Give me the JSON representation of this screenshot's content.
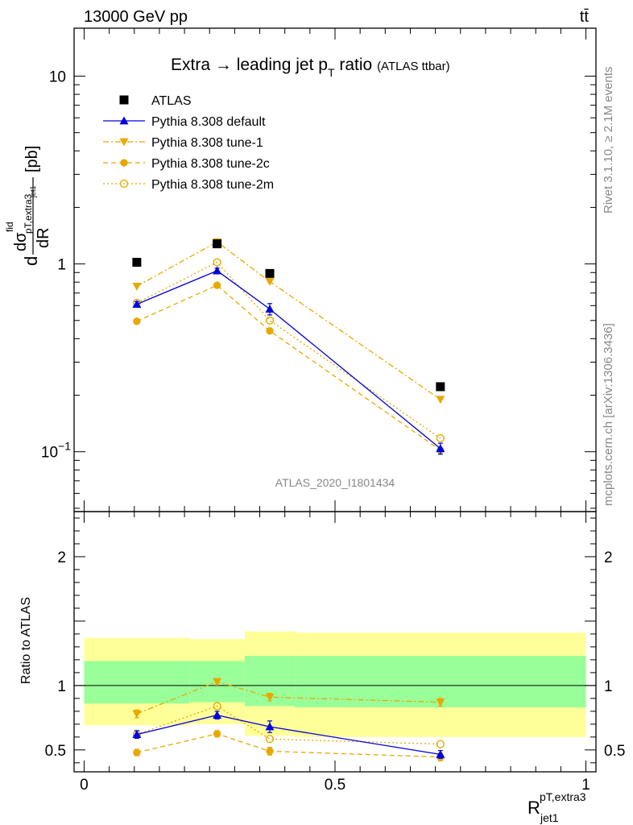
{
  "header": {
    "energy": "13000 GeV pp",
    "process": "tt̄"
  },
  "side": {
    "rivet": "Rivet 3.1.10, ≥ 2.1M events",
    "mcplots": "mcplots.cern.ch [arXiv:1306.3436]"
  },
  "colors": {
    "atlas": "#000000",
    "default": "#0000dd",
    "tunes": "#e8a800",
    "band_inner": "#99ff99",
    "band_outer": "#ffff99"
  },
  "chart_data": [
    {
      "type": "scatter",
      "panel": "main",
      "title_main": "Extra",
      "title_rest": "leading jet p",
      "title_sub": "T",
      "title_end": "ratio",
      "title_small": "(ATLAS ttbar)",
      "analysis": "ATLAS_2020_I1801434",
      "ylabel_num_d": "d",
      "ylabel_num_sigma": "dσ",
      "ylabel_num_sup": "fid",
      "ylabel_sub1": "pT,extra3",
      "ylabel_sub2": "jet1",
      "ylabel_den": "dR",
      "ylabel_unit": "[pb]",
      "yscale": "log",
      "ylim": [
        0.048,
        18
      ],
      "xlim": [
        -0.02,
        1.02
      ],
      "yticks": [
        {
          "value": 0.1,
          "base": "10",
          "exp": "−1"
        },
        {
          "value": 1,
          "base": "1",
          "exp": ""
        },
        {
          "value": 10,
          "base": "10",
          "exp": ""
        }
      ],
      "x": [
        0.105,
        0.265,
        0.37,
        0.71
      ],
      "series": [
        {
          "name": "ATLAS",
          "style": "data",
          "values": [
            1.02,
            1.28,
            0.89,
            0.222
          ]
        },
        {
          "name": "Pythia 8.308 default",
          "style": "default",
          "values": [
            0.61,
            0.92,
            0.575,
            0.104
          ],
          "errors": [
            0.02,
            0.03,
            0.04,
            0.007
          ]
        },
        {
          "name": "Pythia 8.308 tune-1",
          "style": "tune1",
          "values": [
            0.76,
            1.31,
            0.805,
            0.19
          ]
        },
        {
          "name": "Pythia 8.308 tune-2c",
          "style": "tune2c",
          "values": [
            0.495,
            0.77,
            0.44,
            0.102
          ]
        },
        {
          "name": "Pythia 8.308 tune-2m",
          "style": "tune2m",
          "values": [
            0.62,
            1.02,
            0.5,
            0.118
          ]
        }
      ]
    },
    {
      "type": "scatter",
      "panel": "ratio",
      "ylabel": "Ratio to ATLAS",
      "xlabel_main": "R",
      "xlabel_sup": "pT,extra3",
      "xlabel_sub": "jet1",
      "ylim": [
        0.33,
        2.35
      ],
      "xlim": [
        -0.02,
        1.02
      ],
      "yticks": [
        0.5,
        1,
        2
      ],
      "xticks": [
        0,
        0.5,
        1
      ],
      "xtick_labels": [
        "0",
        "0.5",
        "1"
      ],
      "ytick_labels": [
        "0.5",
        "1",
        "2"
      ],
      "bins": [
        0,
        0.21,
        0.32,
        0.42,
        1.0
      ],
      "band_inner": [
        [
          0.86,
          1.19
        ],
        [
          0.87,
          1.19
        ],
        [
          0.84,
          1.23
        ],
        [
          0.83,
          1.23
        ]
      ],
      "band_outer": [
        [
          0.69,
          1.37
        ],
        [
          0.7,
          1.36
        ],
        [
          0.61,
          1.42
        ],
        [
          0.6,
          1.41
        ]
      ],
      "x": [
        0.105,
        0.265,
        0.37,
        0.71
      ],
      "series": [
        {
          "name": "Pythia 8.308 default",
          "style": "default",
          "values": [
            0.62,
            0.77,
            0.68,
            0.465
          ],
          "errors": [
            0.03,
            0.03,
            0.045,
            0.03
          ]
        },
        {
          "name": "Pythia 8.308 tune-1",
          "style": "tune1",
          "values": [
            0.78,
            1.03,
            0.91,
            0.87
          ],
          "errors": [
            0.03,
            0.025,
            0.03,
            0.03
          ]
        },
        {
          "name": "Pythia 8.308 tune-2c",
          "style": "tune2c",
          "values": [
            0.48,
            0.625,
            0.49,
            0.445
          ],
          "errors": [
            0.025,
            0.025,
            0.03,
            0.03
          ]
        },
        {
          "name": "Pythia 8.308 tune-2m",
          "style": "tune2m",
          "values": [
            0.62,
            0.84,
            0.585,
            0.545
          ]
        }
      ]
    }
  ]
}
